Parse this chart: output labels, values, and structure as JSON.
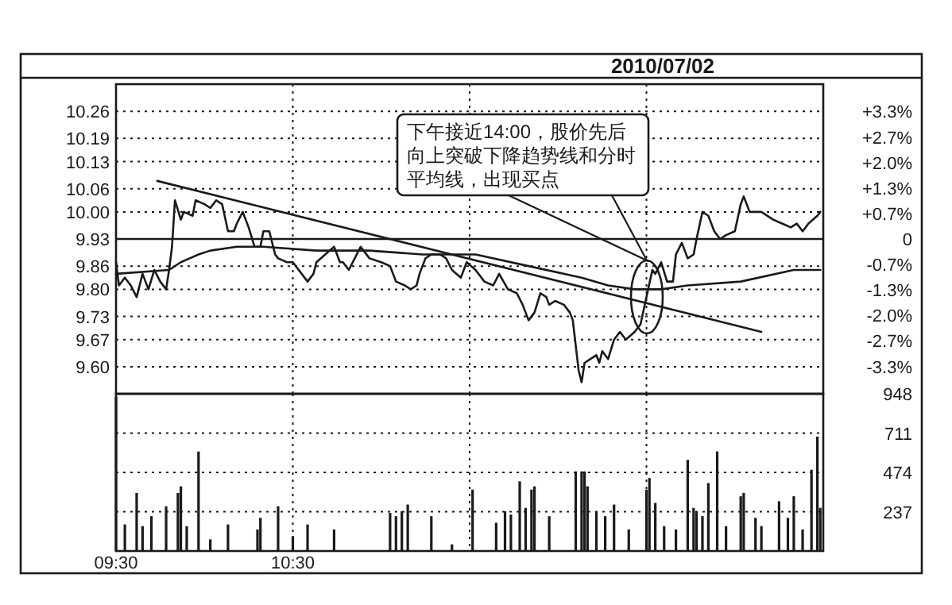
{
  "chart_data": [
    {
      "type": "line",
      "title": "2010/07/02",
      "categories": [
        null,
        null,
        null,
        null,
        null,
        null,
        null,
        null,
        null,
        null,
        null,
        null,
        null,
        null,
        null,
        null,
        null,
        null,
        null,
        null,
        null,
        null,
        null,
        null,
        null,
        null,
        null,
        null,
        null,
        null,
        null,
        null,
        null,
        null,
        null,
        null,
        null,
        null,
        null,
        null,
        null,
        null,
        null,
        null,
        null,
        null,
        null,
        null,
        null,
        null,
        null,
        null,
        null,
        null,
        null,
        null,
        null,
        null,
        null,
        null,
        null,
        null,
        null,
        null,
        null,
        null,
        null,
        null,
        null,
        null,
        null,
        null,
        null,
        null,
        null,
        null,
        null,
        null,
        null,
        null,
        null,
        null,
        null,
        null,
        null,
        null,
        null,
        null,
        null,
        null,
        null,
        null,
        null,
        null,
        null,
        null,
        null,
        null,
        null,
        null,
        null,
        null,
        null,
        null,
        null,
        null,
        null,
        null,
        null,
        null,
        null,
        null,
        null,
        null,
        null,
        null,
        null,
        null,
        null,
        null,
        null,
        null,
        null,
        null,
        null,
        null,
        null,
        null,
        null,
        null,
        null,
        null,
        null,
        null,
        null,
        null,
        null,
        null,
        null,
        null,
        null,
        null,
        null,
        null,
        null,
        null,
        null,
        null,
        null,
        null,
        null,
        null,
        null,
        null,
        null,
        null,
        null,
        null,
        null,
        null,
        null,
        null,
        null,
        null,
        null,
        null,
        null,
        null,
        null,
        null,
        null,
        null,
        null,
        null,
        null,
        null,
        null,
        null,
        null,
        null,
        null,
        null,
        null,
        null,
        null,
        null,
        null,
        null,
        null,
        null,
        null,
        null,
        null,
        null,
        null,
        null,
        null,
        null,
        null,
        null,
        null,
        null,
        null,
        null,
        null,
        null,
        null,
        null,
        null,
        null,
        null,
        null,
        null,
        null,
        null,
        null,
        null,
        null,
        null,
        null,
        null,
        null,
        null,
        null,
        null,
        null,
        null,
        null,
        null,
        null,
        null,
        null,
        null,
        null,
        null,
        null,
        null,
        null,
        null,
        null,
        null
      ],
      "ylim": [
        9.53,
        10.33
      ],
      "yticks": [
        {
          "value": 10.26,
          "label": "10.26"
        },
        {
          "value": 10.19,
          "label": "10.19"
        },
        {
          "value": 10.13,
          "label": "10.13"
        },
        {
          "value": 10.06,
          "label": "10.06"
        },
        {
          "value": 10.0,
          "label": "10.00"
        },
        {
          "value": 9.93,
          "label": "9.93"
        },
        {
          "value": 9.86,
          "label": "9.86"
        },
        {
          "value": 9.8,
          "label": "9.80"
        },
        {
          "value": 9.73,
          "label": "9.73"
        },
        {
          "value": 9.67,
          "label": "9.67"
        },
        {
          "value": 9.6,
          "label": "9.60"
        }
      ],
      "y2lim": [
        -4.03,
        4.03
      ],
      "y2ticks": [
        {
          "value": 3.32,
          "label": "+3.3%"
        },
        {
          "value": 2.65,
          "label": "+2.7%"
        },
        {
          "value": 1.99,
          "label": "+2.0%"
        },
        {
          "value": 1.33,
          "label": "+1.3%"
        },
        {
          "value": 0.66,
          "label": "+0.7%"
        },
        0,
        {
          "value": -0.66,
          "label": "-0.7%"
        },
        {
          "value": -1.33,
          "label": "-1.3%"
        },
        {
          "value": -1.99,
          "label": "-2.0%"
        },
        {
          "value": -2.65,
          "label": "-2.7%"
        },
        {
          "value": -3.32,
          "label": "-3.3%"
        }
      ],
      "tick_labels": "y",
      "grid": true,
      "line_style": "solid",
      "ref_lines": [
        {
          "axis": "y",
          "value": 9.93
        }
      ],
      "annotations": [
        "下午接近14:00，股价先后向上突破下降趋势线和分时平均线，出现买点"
      ],
      "series": [
        {
          "color": "#1a1a1a",
          "values": [
            9.87,
            9.81,
            null,
            9.83,
            null,
            9.81,
            null,
            9.78,
            null,
            9.84,
            null,
            9.8,
            null,
            9.85,
            null,
            9.82,
            null,
            9.8,
            9.85,
            9.91,
            10.03,
            null,
            9.98,
            10.0,
            null,
            null,
            9.99,
            10.03,
            null,
            null,
            10.02,
            null,
            10.01,
            null,
            10.03,
            null,
            10.02,
            null,
            9.95,
            null,
            9.95,
            9.97,
            null,
            10.0,
            null,
            9.96,
            null,
            9.91,
            null,
            9.91,
            9.95,
            null,
            9.95,
            null,
            9.89,
            9.88,
            null,
            null,
            9.87,
            null,
            9.87,
            null,
            null,
            9.84,
            null,
            9.82,
            null,
            9.84,
            9.87,
            null,
            null,
            9.89,
            null,
            null,
            9.91,
            null,
            9.87,
            9.87,
            null,
            9.85,
            null,
            9.88,
            null,
            9.91,
            9.9,
            null,
            9.88,
            null,
            null,
            null,
            9.87,
            null,
            null,
            9.86,
            null,
            9.82,
            null,
            null,
            9.81,
            null,
            9.8,
            null,
            9.81,
            9.84,
            null,
            9.88,
            null,
            9.89,
            null,
            null,
            9.89,
            null,
            9.88,
            null,
            9.85,
            null,
            null,
            9.83,
            null,
            9.87,
            null,
            null,
            9.85,
            null,
            null,
            9.82,
            null,
            null,
            9.81,
            null,
            9.84,
            null,
            null,
            9.8,
            null,
            null,
            9.79,
            null,
            9.76,
            null,
            9.72,
            null,
            9.74,
            null,
            9.79,
            null,
            9.78,
            9.76,
            null,
            9.77,
            null,
            null,
            9.76,
            null,
            9.74,
            9.72,
            null,
            9.59,
            9.56,
            9.61,
            null,
            9.62,
            null,
            9.63,
            9.61,
            9.64,
            null,
            9.62,
            null,
            9.67,
            null,
            9.69,
            null,
            9.67,
            null,
            null,
            9.69,
            null,
            9.71,
            null,
            9.78,
            null,
            9.85,
            9.84,
            null,
            9.87,
            null,
            9.82,
            null,
            9.82,
            9.89,
            null,
            9.92,
            null,
            9.88,
            null,
            9.89,
            9.93,
            null,
            10.0,
            null,
            9.99,
            null,
            9.95,
            null,
            9.93,
            null,
            9.94,
            null,
            null,
            9.95,
            null,
            10.02,
            10.04,
            null,
            10.0,
            null,
            null,
            null,
            10.0,
            null,
            null,
            null,
            9.98,
            null,
            null,
            9.97,
            null,
            null,
            9.96,
            null,
            9.97,
            null,
            9.95,
            null,
            9.97,
            null,
            null,
            9.99,
            10.0,
            null
          ]
        },
        {
          "color": "#1a1a1a",
          "values": [
            9.84,
            null,
            null,
            null,
            null,
            null,
            null,
            null,
            null,
            null,
            null,
            null,
            null,
            null,
            null,
            null,
            null,
            null,
            9.85,
            null,
            null,
            null,
            9.87,
            null,
            null,
            9.88,
            null,
            null,
            9.89,
            null,
            null,
            null,
            9.9,
            null,
            null,
            null,
            null,
            null,
            null,
            null,
            null,
            9.91,
            null,
            null,
            null,
            null,
            null,
            null,
            null,
            null,
            9.91,
            null,
            null,
            null,
            null,
            null,
            null,
            null,
            null,
            null,
            null,
            null,
            null,
            null,
            null,
            null,
            null,
            null,
            9.9,
            null,
            null,
            null,
            null,
            null,
            null,
            null,
            null,
            null,
            null,
            null,
            null,
            null,
            null,
            null,
            null,
            null,
            9.9,
            null,
            null,
            null,
            null,
            null,
            null,
            null,
            null,
            null,
            null,
            null,
            null,
            null,
            null,
            null,
            null,
            null,
            9.89,
            null,
            null,
            null,
            null,
            null,
            null,
            null,
            null,
            null,
            null,
            null,
            null,
            null,
            null,
            null,
            null,
            null,
            9.89,
            null,
            null,
            null,
            null,
            null,
            null,
            null,
            null,
            null,
            null,
            null,
            null,
            null,
            null,
            null,
            null,
            null,
            9.86,
            null,
            null,
            null,
            null,
            null,
            null,
            null,
            null,
            null,
            null,
            null,
            null,
            null,
            null,
            null,
            null,
            null,
            9.83,
            null,
            null,
            null,
            null,
            null,
            null,
            null,
            null,
            9.81,
            null,
            null,
            null,
            null,
            null,
            null,
            null,
            null,
            9.8,
            null,
            null,
            null,
            null,
            null,
            null,
            null,
            null,
            9.8,
            null,
            null,
            null,
            null,
            null,
            null,
            null,
            null,
            9.81,
            null,
            null,
            null,
            null,
            null,
            null,
            null,
            null,
            null,
            null,
            null,
            null,
            null,
            null,
            null,
            null,
            null,
            9.82,
            null,
            null,
            null,
            null,
            null,
            null,
            null,
            null,
            null,
            null,
            null,
            null,
            null,
            null,
            null,
            null,
            null,
            9.85,
            null,
            null,
            null,
            null,
            null,
            null,
            null,
            null,
            9.85,
            null
          ]
        },
        {
          "color": "#1a1a1a",
          "values": [
            null,
            null,
            null,
            null,
            null,
            null,
            null,
            null,
            null,
            null,
            null,
            null,
            null,
            null,
            10.08,
            null,
            null,
            null,
            null,
            null,
            null,
            null,
            null,
            null,
            null,
            null,
            null,
            null,
            null,
            null,
            null,
            null,
            null,
            null,
            null,
            null,
            null,
            null,
            null,
            null,
            null,
            null,
            null,
            null,
            null,
            null,
            null,
            null,
            null,
            null,
            null,
            null,
            null,
            null,
            null,
            null,
            null,
            null,
            null,
            null,
            null,
            null,
            null,
            null,
            null,
            null,
            null,
            null,
            null,
            null,
            null,
            null,
            null,
            null,
            null,
            null,
            null,
            null,
            null,
            null,
            null,
            null,
            null,
            null,
            null,
            null,
            null,
            null,
            null,
            null,
            null,
            null,
            null,
            null,
            null,
            null,
            null,
            null,
            null,
            null,
            null,
            null,
            null,
            null,
            null,
            null,
            null,
            null,
            null,
            null,
            null,
            null,
            null,
            null,
            null,
            null,
            null,
            null,
            null,
            null,
            null,
            null,
            null,
            null,
            null,
            null,
            null,
            null,
            null,
            null,
            null,
            null,
            null,
            null,
            null,
            null,
            null,
            null,
            null,
            null,
            null,
            null,
            null,
            null,
            null,
            null,
            null,
            null,
            null,
            null,
            null,
            null,
            null,
            null,
            null,
            null,
            null,
            null,
            null,
            null,
            null,
            null,
            null,
            null,
            null,
            null,
            null,
            null,
            null,
            null,
            null,
            null,
            null,
            null,
            null,
            null,
            null,
            null,
            null,
            null,
            null,
            null,
            null,
            null,
            null,
            null,
            null,
            null,
            null,
            null,
            null,
            null,
            null,
            null,
            null,
            null,
            null,
            null,
            null,
            null,
            null,
            null,
            null,
            null,
            null,
            null,
            null,
            null,
            null,
            null,
            null,
            null,
            null,
            null,
            null,
            null,
            null,
            null,
            null,
            9.69,
            null,
            null,
            null,
            null,
            null,
            null,
            null,
            null,
            null,
            null,
            null,
            null,
            null,
            null,
            null,
            null,
            null,
            null,
            null,
            null,
            null
          ]
        }
      ]
    },
    {
      "type": "bar",
      "categories": [
        "09:30",
        null,
        null,
        null,
        null,
        null,
        null,
        null,
        null,
        null,
        null,
        null,
        null,
        null,
        null,
        null,
        null,
        null,
        null,
        null,
        null,
        null,
        null,
        null,
        null,
        null,
        null,
        null,
        null,
        null,
        null,
        null,
        null,
        null,
        null,
        null,
        null,
        null,
        null,
        null,
        null,
        null,
        null,
        null,
        null,
        null,
        null,
        null,
        null,
        null,
        null,
        null,
        null,
        null,
        null,
        null,
        null,
        null,
        null,
        null,
        "10:30",
        null,
        null,
        null,
        null,
        null,
        null,
        null,
        null,
        null,
        null,
        null,
        null,
        null,
        null,
        null,
        null,
        null,
        null,
        null,
        null,
        null,
        null,
        null,
        null,
        null,
        null,
        null,
        null,
        null,
        null,
        null,
        null,
        null,
        null,
        null,
        null,
        null,
        null,
        null,
        null,
        null,
        null,
        null,
        null,
        null,
        null,
        null,
        null,
        null,
        null,
        null,
        null,
        null,
        null,
        null,
        null,
        null,
        null,
        null,
        null,
        null,
        null,
        null,
        null,
        null,
        null,
        null,
        null,
        null,
        null,
        null,
        null,
        null,
        null,
        null,
        null,
        null,
        null,
        null,
        null,
        null,
        null,
        null,
        null,
        null,
        null,
        null,
        null,
        null,
        null,
        null,
        null,
        null,
        null,
        null,
        null,
        null,
        null,
        null,
        null,
        null,
        null,
        null,
        null,
        null,
        null,
        null,
        null,
        null,
        null,
        null,
        null,
        null,
        null,
        null,
        null,
        null,
        null,
        null,
        null,
        null,
        null,
        null,
        null,
        null,
        null,
        null,
        null,
        null,
        null,
        null,
        null,
        null,
        null,
        null,
        null,
        null,
        null,
        null,
        null,
        null,
        null,
        null,
        null,
        null,
        null,
        null,
        null,
        null,
        null,
        null,
        null,
        null,
        null,
        null,
        null,
        null,
        null,
        null,
        null,
        null,
        null,
        null,
        null,
        null,
        null,
        null,
        null,
        null,
        null,
        null,
        null,
        null,
        null,
        null,
        null,
        null,
        null,
        null,
        null
      ],
      "ylim": [
        0,
        948
      ],
      "yticks": [
        237,
        474,
        711,
        948
      ],
      "grid": true,
      "series": [
        {
          "color": "#1a1a1a",
          "values": [
            930,
            null,
            null,
            160,
            null,
            null,
            null,
            350,
            null,
            150,
            null,
            null,
            210,
            null,
            null,
            null,
            null,
            270,
            null,
            null,
            null,
            350,
            390,
            null,
            150,
            null,
            null,
            null,
            600,
            null,
            null,
            null,
            70,
            null,
            null,
            null,
            null,
            null,
            160,
            null,
            null,
            null,
            null,
            null,
            null,
            null,
            null,
            null,
            130,
            200,
            null,
            null,
            null,
            null,
            null,
            270,
            null,
            null,
            null,
            null,
            90,
            null,
            null,
            null,
            null,
            160,
            null,
            null,
            null,
            null,
            null,
            null,
            null,
            null,
            130,
            null,
            null,
            null,
            null,
            null,
            null,
            null,
            null,
            null,
            null,
            null,
            null,
            null,
            null,
            null,
            null,
            null,
            null,
            230,
            null,
            210,
            null,
            240,
            null,
            280,
            null,
            null,
            null,
            null,
            null,
            null,
            null,
            210,
            null,
            null,
            null,
            null,
            null,
            null,
            40,
            null,
            null,
            null,
            null,
            null,
            null,
            370,
            null,
            null,
            null,
            null,
            null,
            null,
            null,
            170,
            null,
            null,
            240,
            null,
            220,
            null,
            null,
            420,
            null,
            260,
            null,
            370,
            390,
            null,
            null,
            null,
            null,
            210,
            null,
            null,
            null,
            null,
            null,
            null,
            null,
            null,
            480,
            null,
            480,
            480,
            390,
            null,
            null,
            240,
            null,
            null,
            210,
            null,
            null,
            280,
            null,
            null,
            null,
            null,
            130,
            null,
            null,
            null,
            null,
            null,
            370,
            440,
            null,
            290,
            null,
            null,
            150,
            null,
            null,
            null,
            130,
            null,
            null,
            null,
            550,
            null,
            260,
            240,
            null,
            210,
            null,
            410,
            null,
            null,
            600,
            null,
            null,
            150,
            null,
            null,
            null,
            null,
            330,
            350,
            null,
            null,
            null,
            200,
            null,
            150,
            null,
            null,
            null,
            null,
            null,
            300,
            null,
            null,
            200,
            null,
            330,
            null,
            null,
            130,
            null,
            null,
            490,
            null,
            690,
            260,
            null
          ]
        }
      ]
    }
  ]
}
